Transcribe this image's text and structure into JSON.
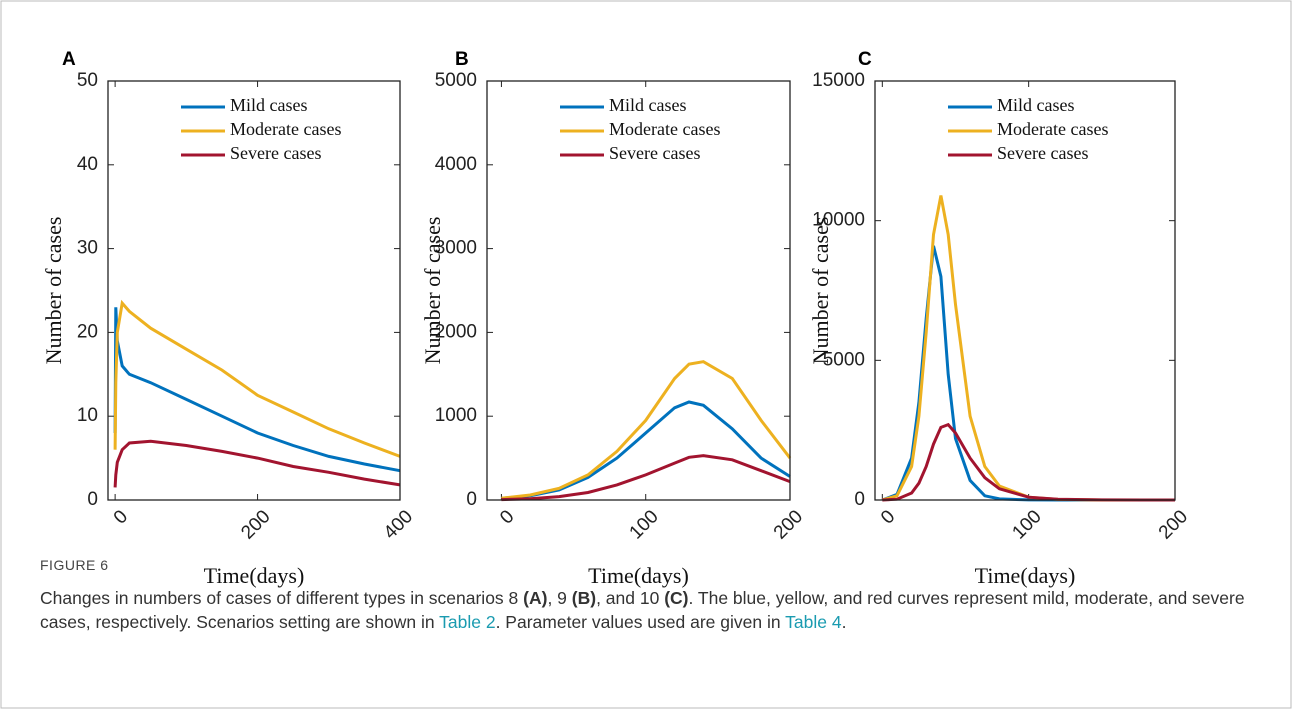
{
  "chart_data": [
    {
      "type": "line",
      "panel_label": "A",
      "x_label": "Time(days)",
      "y_label": "Number of cases",
      "x": [
        0,
        1,
        3,
        10,
        20,
        50,
        100,
        150,
        200,
        250,
        300,
        350,
        400
      ],
      "xlim": [
        -10,
        400
      ],
      "xticks": [
        0,
        200,
        400
      ],
      "ylim": [
        0,
        50
      ],
      "yticks": [
        0,
        10,
        20,
        30,
        40,
        50
      ],
      "series": [
        {
          "name": "Mild cases",
          "color": "#0072BD",
          "values": [
            8,
            23,
            19,
            16,
            15,
            14,
            12,
            10,
            8,
            6.5,
            5.2,
            4.3,
            3.5
          ]
        },
        {
          "name": "Moderate cases",
          "color": "#EDB120",
          "values": [
            6,
            14,
            20,
            23.5,
            22.5,
            20.5,
            18,
            15.5,
            12.5,
            10.5,
            8.5,
            6.8,
            5.2
          ]
        },
        {
          "name": "Severe cases",
          "color": "#A2142F",
          "values": [
            1.5,
            3,
            4.5,
            6,
            6.8,
            7,
            6.5,
            5.8,
            5,
            4,
            3.3,
            2.5,
            1.8
          ]
        }
      ]
    },
    {
      "type": "line",
      "panel_label": "B",
      "x_label": "Time(days)",
      "y_label": "Number of cases",
      "x": [
        0,
        20,
        40,
        60,
        80,
        100,
        120,
        130,
        140,
        160,
        180,
        200
      ],
      "xlim": [
        -10,
        200
      ],
      "xticks": [
        0,
        100,
        200
      ],
      "ylim": [
        0,
        5000
      ],
      "yticks": [
        0,
        1000,
        2000,
        3000,
        4000,
        5000
      ],
      "series": [
        {
          "name": "Mild cases",
          "color": "#0072BD",
          "values": [
            20,
            50,
            120,
            270,
            500,
            800,
            1100,
            1170,
            1130,
            850,
            500,
            280
          ]
        },
        {
          "name": "Moderate cases",
          "color": "#EDB120",
          "values": [
            20,
            60,
            140,
            300,
            580,
            950,
            1450,
            1620,
            1650,
            1450,
            950,
            500
          ]
        },
        {
          "name": "Severe cases",
          "color": "#A2142F",
          "values": [
            5,
            15,
            40,
            90,
            180,
            300,
            440,
            510,
            530,
            480,
            350,
            220
          ]
        }
      ]
    },
    {
      "type": "line",
      "panel_label": "C",
      "x_label": "Time(days)",
      "y_label": "Number of cases",
      "x": [
        0,
        10,
        20,
        25,
        30,
        35,
        40,
        45,
        50,
        60,
        70,
        80,
        100,
        120,
        150,
        200
      ],
      "xlim": [
        -5,
        200
      ],
      "xticks": [
        0,
        100,
        200
      ],
      "ylim": [
        0,
        15000
      ],
      "yticks": [
        0,
        5000,
        10000,
        15000
      ],
      "series": [
        {
          "name": "Mild cases",
          "color": "#0072BD",
          "values": [
            0,
            200,
            1500,
            3500,
            6500,
            9100,
            8000,
            4500,
            2200,
            700,
            150,
            40,
            5,
            0,
            0,
            0
          ]
        },
        {
          "name": "Moderate cases",
          "color": "#EDB120",
          "values": [
            0,
            150,
            1200,
            3000,
            6000,
            9500,
            10900,
            9500,
            7000,
            3000,
            1200,
            500,
            100,
            20,
            0,
            0
          ]
        },
        {
          "name": "Severe cases",
          "color": "#A2142F",
          "values": [
            0,
            30,
            250,
            600,
            1200,
            2000,
            2600,
            2700,
            2400,
            1500,
            800,
            400,
            100,
            30,
            5,
            0
          ]
        }
      ]
    }
  ],
  "figure": {
    "label": "FIGURE 6",
    "caption": [
      "Changes in numbers of cases of different types in scenarios 8 ",
      "(A)",
      ", 9 ",
      "(B)",
      ", and 10 ",
      "(C)",
      ". The blue, yellow, and red curves represent mild, moderate, and severe cases, respectively. Scenarios setting are shown in ",
      "Table 2",
      ". Parameter values used are given in ",
      "Table 4",
      "."
    ]
  }
}
